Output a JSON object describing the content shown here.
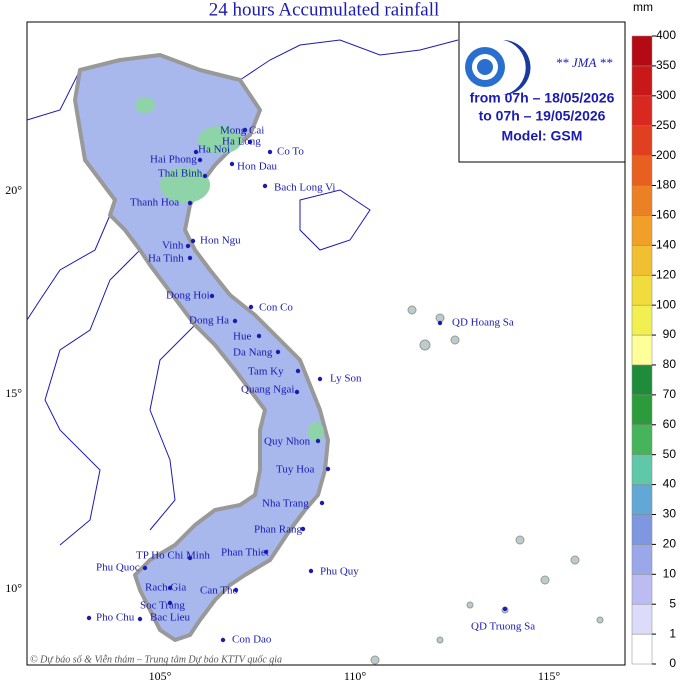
{
  "title": "24 hours Accumulated rainfall",
  "info": {
    "agency": "** JMA **",
    "from": "from 07h – 18/05/2026",
    "to": "to 07h – 19/05/2026",
    "model": "Model: GSM"
  },
  "lat_labels": [
    "20°",
    "15°",
    "10°"
  ],
  "lon_labels": [
    "105°",
    "110°",
    "115°"
  ],
  "cities": [
    "Mong Cai",
    "Ha Long",
    "Ha Noi",
    "Co To",
    "Hai Phong",
    "Hon Dau",
    "Thai Binh",
    "Bach Long Vi",
    "Thanh Hoa",
    "Hon Ngu",
    "Vinh",
    "Ha Tinh",
    "Dong Hoi",
    "Con Co",
    "Dong Ha",
    "Hue",
    "Da Nang",
    "Tam Ky",
    "Ly Son",
    "Quang Ngai",
    "QD Hoang Sa",
    "Quy Nhon",
    "Tuy Hoa",
    "Nha Trang",
    "Phan Rang",
    "Phan Thiet",
    "TP Ho Chi Minh",
    "Phu Quoc",
    "Phu Quy",
    "Rach Gia",
    "Can Tho",
    "Soc Trang",
    "Bac Lieu",
    "Pho Chu",
    "Con Dao",
    "QD Truong Sa"
  ],
  "credit": "© Dự báo số & Viễn thám – Trung tâm Dự báo KTTV quốc gia",
  "colorbar": {
    "unit": "mm",
    "ticks": [
      0,
      1,
      5,
      10,
      20,
      30,
      40,
      50,
      60,
      70,
      80,
      90,
      100,
      120,
      140,
      160,
      180,
      200,
      250,
      300,
      350,
      400
    ],
    "colors": [
      "#ffffff",
      "#dcdcfa",
      "#bcbcf2",
      "#9aa8ea",
      "#7f96e0",
      "#62a8d6",
      "#5ec8a8",
      "#46b45a",
      "#2c9c3a",
      "#1f8c3c",
      "#ffff99",
      "#f2f050",
      "#f0dc3c",
      "#f0c030",
      "#f0a028",
      "#ec8024",
      "#e86020",
      "#e04020",
      "#d82820",
      "#c81818",
      "#b40a14"
    ]
  }
}
